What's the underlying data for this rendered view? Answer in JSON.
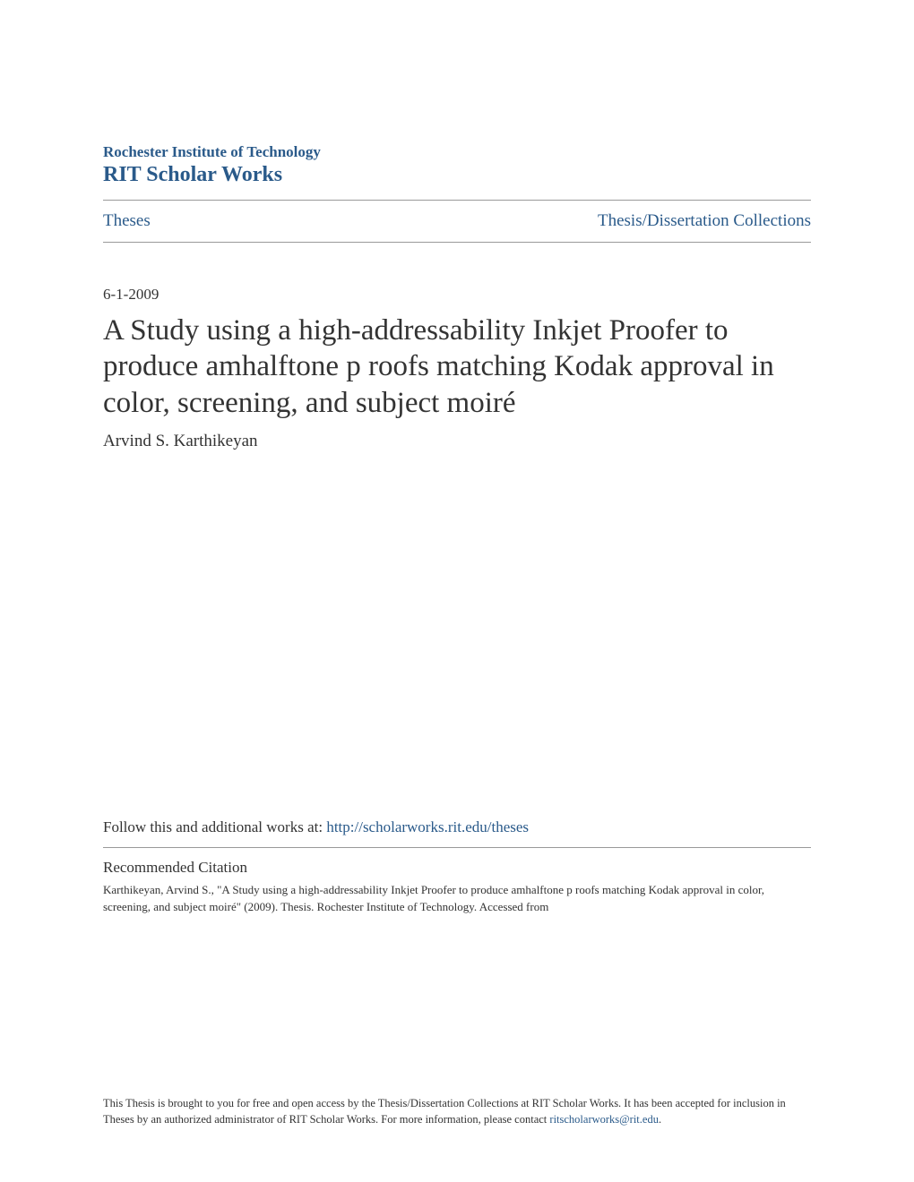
{
  "header": {
    "institution": "Rochester Institute of Technology",
    "repository": "RIT Scholar Works"
  },
  "nav": {
    "left_link": "Theses",
    "right_link": "Thesis/Dissertation Collections"
  },
  "document": {
    "date": "6-1-2009",
    "title": "A Study using a high-addressability Inkjet Proofer to produce amhalftone p roofs matching Kodak approval in color, screening, and subject moiré",
    "author": "Arvind S. Karthikeyan"
  },
  "follow": {
    "prefix": "Follow this and additional works at: ",
    "url": "http://scholarworks.rit.edu/theses"
  },
  "citation": {
    "heading": "Recommended Citation",
    "text": "Karthikeyan, Arvind S., \"A Study using a high-addressability Inkjet Proofer to produce amhalftone p roofs matching Kodak approval in color, screening, and subject moiré\" (2009). Thesis. Rochester Institute of Technology. Accessed from"
  },
  "footer": {
    "text_prefix": "This Thesis is brought to you for free and open access by the Thesis/Dissertation Collections at RIT Scholar Works. It has been accepted for inclusion in Theses by an authorized administrator of RIT Scholar Works. For more information, please contact ",
    "email": "ritscholarworks@rit.edu",
    "text_suffix": "."
  },
  "colors": {
    "link_color": "#2a5a8a",
    "text_color": "#333333",
    "divider_color": "#999999",
    "background": "#ffffff"
  }
}
